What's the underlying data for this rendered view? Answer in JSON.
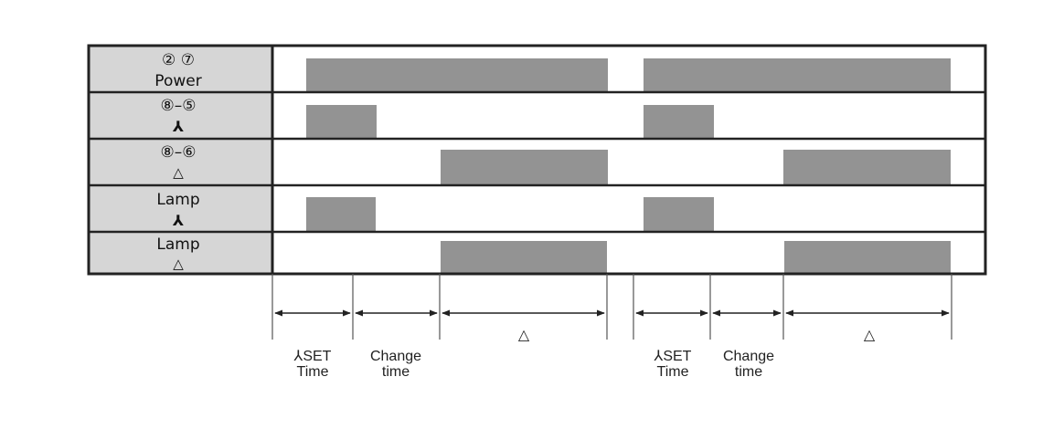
{
  "colors": {
    "bar": "#939393",
    "header_bg": "#d6d6d6",
    "border": "#222222",
    "background": "#ffffff"
  },
  "rows": [
    {
      "line1": "②  ⑦",
      "line2": "Power"
    },
    {
      "line1": "⑧–⑤",
      "line2": "⅄"
    },
    {
      "line1": "⑧–⑥",
      "line2": "△"
    },
    {
      "line1": "Lamp",
      "line2": "⅄"
    },
    {
      "line1": "Lamp",
      "line2": "△"
    }
  ],
  "intervals": [
    {
      "line1": "⅄SET",
      "line2": "Time"
    },
    {
      "line1": "Change",
      "line2": "time"
    },
    {
      "line1": "△",
      "line2": ""
    },
    {
      "line1": "⅄SET",
      "line2": "Time"
    },
    {
      "line1": "Change",
      "line2": "time"
    },
    {
      "line1": "△",
      "line2": ""
    }
  ]
}
